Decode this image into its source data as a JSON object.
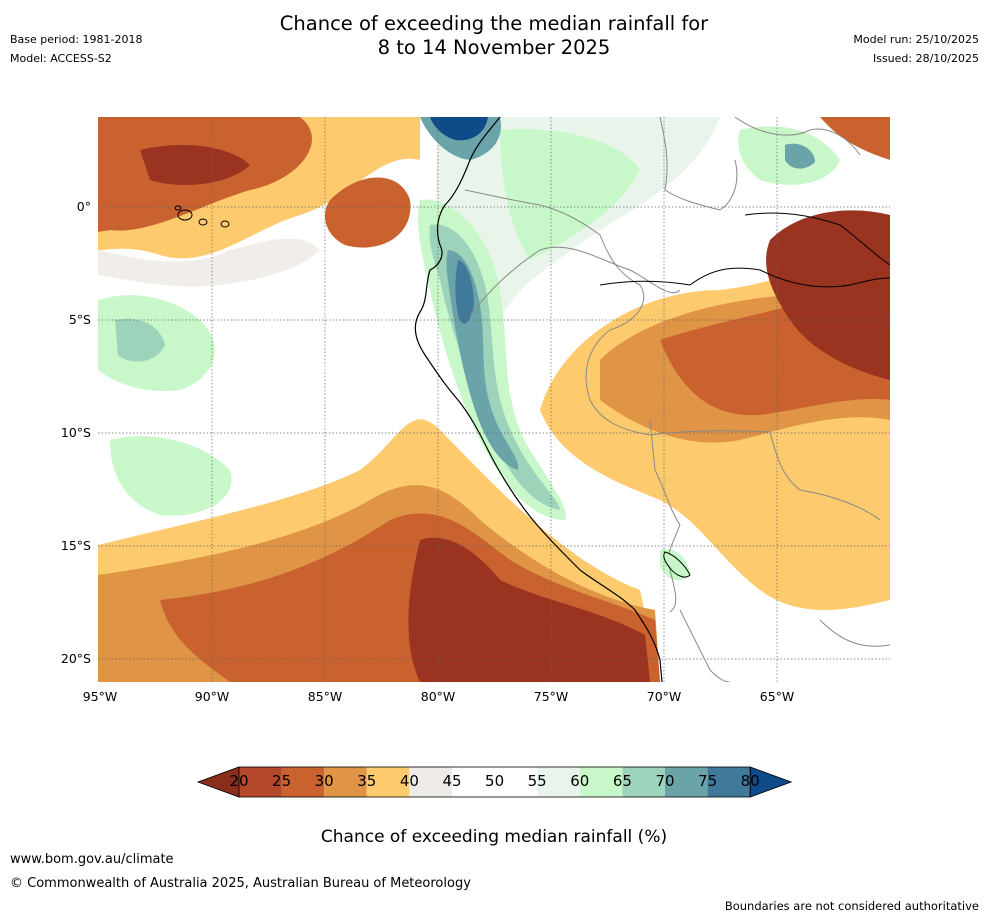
{
  "title": {
    "line1": "Chance of exceeding the median rainfall for",
    "line2": "8 to 14 November 2025"
  },
  "meta": {
    "base_period": "Base period: 1981-2018",
    "model": "Model: ACCESS-S2",
    "model_run": "Model run: 25/10/2025",
    "issued": "Issued: 28/10/2025"
  },
  "map": {
    "region": "western South America and eastern Pacific",
    "lat_labels": [
      "0°",
      "5°S",
      "10°S",
      "15°S",
      "20°S"
    ],
    "lon_labels": [
      "95°W",
      "90°W",
      "85°W",
      "80°W",
      "75°W",
      "70°W",
      "65°W"
    ],
    "lat_values": [
      0,
      -5,
      -10,
      -15,
      -20
    ],
    "lon_values": [
      -95,
      -90,
      -85,
      -80,
      -75,
      -70,
      -65
    ],
    "extent": {
      "lon_min": -95,
      "lon_max": -60,
      "lat_min": -21,
      "lat_max": 4
    }
  },
  "colorbar": {
    "labels": [
      "20",
      "25",
      "30",
      "35",
      "40",
      "45",
      "50",
      "55",
      "60",
      "65",
      "70",
      "75",
      "80"
    ],
    "colors": [
      "#9a331f",
      "#b4482a",
      "#c9622f",
      "#e09445",
      "#fdcb6d",
      "#eeebe6",
      "#ffffff",
      "#ffffff",
      "#e9f5ea",
      "#c8f8c9",
      "#9dd2bb",
      "#6ba4a8",
      "#41799b"
    ],
    "under_color": "#8a2e1b",
    "over_color": "#0f4a89",
    "title": "Chance of exceeding median rainfall (%)"
  },
  "footer": {
    "url": "www.bom.gov.au/climate",
    "copyright": "© Commonwealth of Australia 2025, Australian Bureau of Meteorology",
    "disclaimer": "Boundaries are not considered authoritative"
  }
}
